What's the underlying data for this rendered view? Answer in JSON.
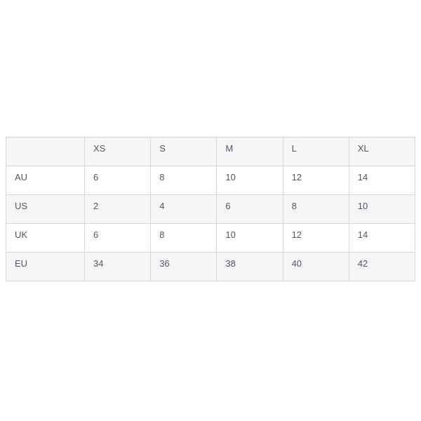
{
  "size_chart": {
    "corner_label": "",
    "columns": [
      "XS",
      "S",
      "M",
      "L",
      "XL"
    ],
    "rows": [
      {
        "label": "AU",
        "values": [
          "6",
          "8",
          "10",
          "12",
          "14"
        ]
      },
      {
        "label": "US",
        "values": [
          "2",
          "4",
          "6",
          "8",
          "10"
        ]
      },
      {
        "label": "UK",
        "values": [
          "6",
          "8",
          "10",
          "12",
          "14"
        ]
      },
      {
        "label": "EU",
        "values": [
          "34",
          "36",
          "38",
          "40",
          "42"
        ]
      }
    ],
    "colors": {
      "stripe_background": "#f5f6f8",
      "border": "#d5d8db",
      "outer_border": "#c5c8cb",
      "text": "#53575c",
      "page_background": "#ffffff"
    }
  }
}
